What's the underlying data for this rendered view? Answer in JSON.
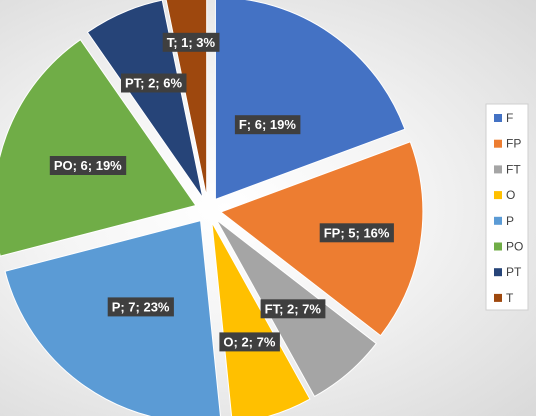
{
  "chart_data": {
    "type": "pie",
    "title": "",
    "categories": [
      "F",
      "FP",
      "FT",
      "O",
      "P",
      "PO",
      "PT",
      "T"
    ],
    "values": [
      6,
      5,
      2,
      2,
      7,
      6,
      2,
      1
    ],
    "labels": [
      "F; 6; 19%",
      "FP; 5; 16%",
      "FT; 2; 7%",
      "O; 2; 7%",
      "P; 7; 23%",
      "PO; 6; 19%",
      "PT; 2; 6%",
      "T; 1; 3%"
    ],
    "colors": [
      "#4472C4",
      "#ED7D31",
      "#A5A5A5",
      "#FFC000",
      "#5B9BD5",
      "#70AD47",
      "#264478",
      "#9E480E"
    ],
    "exploded": true,
    "legend": {
      "position": "right",
      "entries": [
        "F",
        "FP",
        "FT",
        "O",
        "P",
        "PO",
        "PT",
        "T"
      ]
    }
  }
}
